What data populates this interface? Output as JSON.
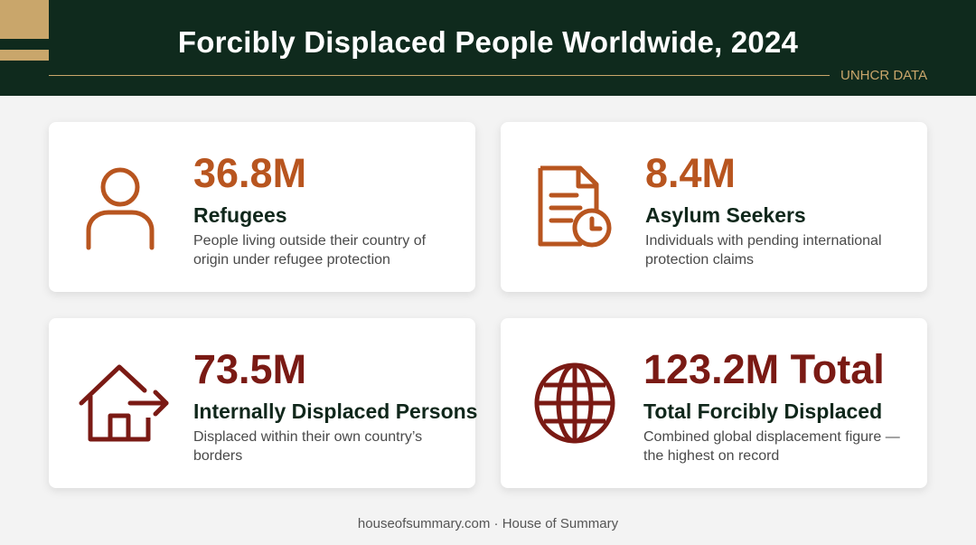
{
  "header": {
    "title": "Forcibly Displaced People Worldwide, 2024",
    "tag": "UNHCR DATA"
  },
  "colors": {
    "header_bg": "#0f2a1d",
    "gold": "#c9a66b",
    "orange": "#b8551f",
    "dark_red": "#7a1a14",
    "label_dark": "#10271b"
  },
  "cards": [
    {
      "icon": "person-icon",
      "value": "36.8M",
      "label": "Refugees",
      "description": "People living outside their country of origin under refugee protection"
    },
    {
      "icon": "document-clock-icon",
      "value": "8.4M",
      "label": "Asylum Seekers",
      "description": "Individuals with pending international protection claims"
    },
    {
      "icon": "house-arrow-icon",
      "value": "73.5M",
      "label": "Internally Displaced Persons",
      "description": "Displaced within their own country’s borders"
    },
    {
      "icon": "globe-icon",
      "value": "123.2M Total",
      "label": "Total Forcibly Displaced",
      "description": "Combined global displacement figure — the highest on record"
    }
  ],
  "footer": {
    "text": "houseofsummary.com · House of Summary"
  }
}
